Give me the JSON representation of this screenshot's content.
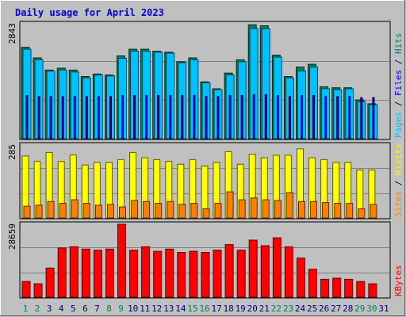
{
  "title": "Daily usage for April 2023",
  "colors": {
    "background": "#c0c0c0",
    "title": "#0000cc",
    "hits": "#00805c",
    "files": "#00c0ff",
    "pages": "#0000ff",
    "visits": "#ffff00",
    "sites": "#ff8000",
    "kbytes": "#ff0000",
    "weekend_day": "#00805c",
    "weekday_day": "#000080"
  },
  "side_labels": {
    "top": [
      {
        "text": "Pages",
        "color": "#00c0ff"
      },
      {
        "text": " / ",
        "color": "#000080"
      },
      {
        "text": "Files",
        "color": "#0000ff"
      },
      {
        "text": " / ",
        "color": "#000080"
      },
      {
        "text": "Hits",
        "color": "#00805c"
      }
    ],
    "middle": [
      {
        "text": "Sites",
        "color": "#ff8000"
      },
      {
        "text": " / ",
        "color": "#000080"
      },
      {
        "text": "Visits",
        "color": "#ffff00"
      }
    ],
    "bottom": [
      {
        "text": "KBytes",
        "color": "#ff0000"
      }
    ]
  },
  "chart_data": [
    {
      "type": "bar",
      "panel": "hits-files-pages",
      "ylabel_max": "2843",
      "ylim": [
        0,
        2843
      ],
      "categories": [
        "1",
        "2",
        "3",
        "4",
        "5",
        "6",
        "7",
        "8",
        "9",
        "10",
        "11",
        "12",
        "13",
        "14",
        "15",
        "16",
        "17",
        "18",
        "19",
        "20",
        "21",
        "22",
        "23",
        "24",
        "25",
        "26",
        "27",
        "28",
        "29",
        "30"
      ],
      "series": [
        {
          "name": "Hits",
          "values": [
            2262,
            2000,
            1697,
            1745,
            1697,
            1540,
            1600,
            1576,
            2048,
            2213,
            2213,
            2165,
            2140,
            1903,
            2000,
            1406,
            1236,
            1624,
            1952,
            2818,
            2794,
            2067,
            1540,
            1770,
            1842,
            1285,
            1260,
            1260,
            960,
            865
          ]
        },
        {
          "name": "Files",
          "values": [
            2213,
            1952,
            1673,
            1697,
            1648,
            1503,
            1576,
            1552,
            1990,
            2165,
            2165,
            2140,
            2116,
            1879,
            1952,
            1382,
            1212,
            1576,
            1903,
            2721,
            2721,
            2018,
            1503,
            1673,
            1770,
            1236,
            1212,
            1236,
            913,
            841
          ]
        },
        {
          "name": "Pages",
          "values": [
            1067,
            1043,
            1043,
            1043,
            1043,
            1043,
            1043,
            1043,
            1067,
            1067,
            1067,
            1067,
            1067,
            1067,
            1067,
            1043,
            1043,
            1067,
            1067,
            1091,
            1091,
            1067,
            1043,
            1067,
            1067,
            1043,
            1043,
            1043,
            1019,
            1019
          ]
        }
      ]
    },
    {
      "type": "bar",
      "panel": "visits-sites",
      "ylabel_max": "285",
      "ylim": [
        0,
        285
      ],
      "categories": [
        "1",
        "2",
        "3",
        "4",
        "5",
        "6",
        "7",
        "8",
        "9",
        "10",
        "11",
        "12",
        "13",
        "14",
        "15",
        "16",
        "17",
        "18",
        "19",
        "20",
        "21",
        "22",
        "23",
        "24",
        "25",
        "26",
        "27",
        "28",
        "29",
        "30"
      ],
      "series": [
        {
          "name": "Visits",
          "values": [
            242,
            221,
            256,
            221,
            246,
            207,
            217,
            217,
            228,
            256,
            235,
            228,
            221,
            210,
            228,
            203,
            217,
            259,
            210,
            249,
            235,
            245,
            245,
            270,
            235,
            228,
            217,
            217,
            187,
            187
          ]
        },
        {
          "name": "Sites",
          "values": [
            46,
            50,
            64,
            57,
            71,
            57,
            50,
            53,
            43,
            68,
            64,
            57,
            64,
            53,
            57,
            36,
            57,
            102,
            71,
            78,
            71,
            68,
            99,
            64,
            64,
            60,
            57,
            57,
            36,
            53
          ]
        }
      ]
    },
    {
      "type": "bar",
      "panel": "kbytes",
      "ylabel_max": "28659",
      "ylim": [
        0,
        28659
      ],
      "categories": [
        "1",
        "2",
        "3",
        "4",
        "5",
        "6",
        "7",
        "8",
        "9",
        "10",
        "11",
        "12",
        "13",
        "14",
        "15",
        "16",
        "17",
        "18",
        "19",
        "20",
        "21",
        "22",
        "23",
        "24",
        "25",
        "26",
        "27",
        "28",
        "29",
        "30"
      ],
      "series": [
        {
          "name": "KBytes",
          "values": [
            6160,
            5280,
            11440,
            19360,
            19800,
            18920,
            18480,
            18920,
            28659,
            18480,
            19800,
            18040,
            18920,
            17600,
            18040,
            17600,
            18480,
            20680,
            18480,
            22440,
            20240,
            23320,
            19800,
            15400,
            11000,
            7040,
            7480,
            7040,
            6160,
            5280
          ]
        }
      ]
    }
  ],
  "day_labels": [
    "1",
    "2",
    "3",
    "4",
    "5",
    "6",
    "7",
    "8",
    "9",
    "10",
    "11",
    "12",
    "13",
    "14",
    "15",
    "16",
    "17",
    "18",
    "19",
    "20",
    "21",
    "22",
    "23",
    "24",
    "25",
    "26",
    "27",
    "28",
    "29",
    "30",
    "31"
  ],
  "weekend_days": [
    1,
    2,
    8,
    9,
    15,
    16,
    22,
    23,
    29,
    30
  ]
}
